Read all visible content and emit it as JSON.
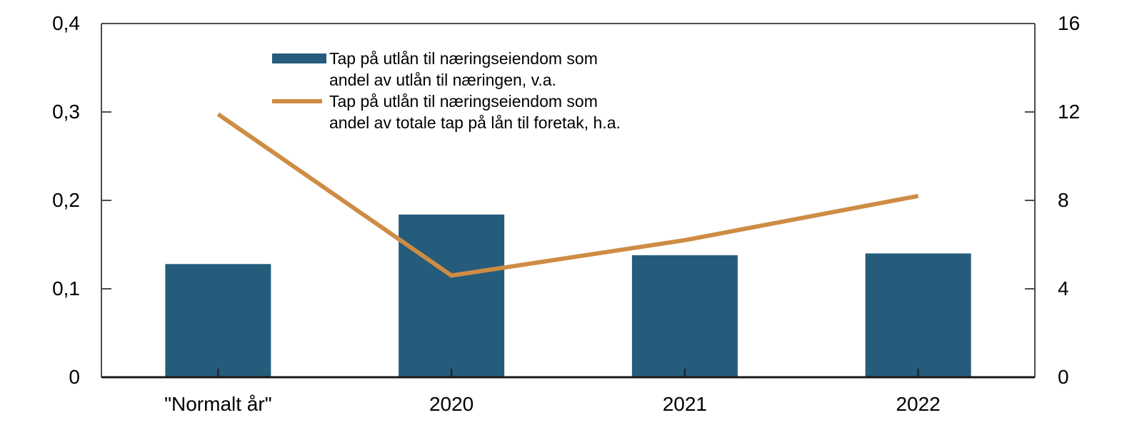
{
  "chart_data": {
    "type": "bar+line",
    "title": "",
    "categories": [
      "\"Normalt år\"",
      "2020",
      "2021",
      "2022"
    ],
    "series": [
      {
        "name": "Tap på utlån til næringseiendom som andel av utlån til næringen, v.a.",
        "kind": "bar",
        "axis": "left",
        "values": [
          0.128,
          0.184,
          0.138,
          0.14
        ]
      },
      {
        "name": "Tap på utlån til næringseiendom som andel av totale tap på lån til foretak, h.a.",
        "kind": "line",
        "axis": "right",
        "values": [
          11.9,
          4.6,
          6.2,
          8.2
        ]
      }
    ],
    "left_axis": {
      "min": 0,
      "max": 0.4,
      "tick_values": [
        0,
        0.1,
        0.2,
        0.3,
        0.4
      ],
      "tick_labels": [
        "0",
        "0,1",
        "0,2",
        "0,3",
        "0,4"
      ]
    },
    "right_axis": {
      "min": 0,
      "max": 16,
      "tick_values": [
        0,
        4,
        8,
        12,
        16
      ],
      "tick_labels": [
        "0",
        "4",
        "8",
        "12",
        "16"
      ]
    },
    "grid": false,
    "legend_position": "top-left-inside"
  },
  "legend": {
    "items": [
      {
        "line1": "Tap på utlån til næringseiendom som",
        "line2": "andel av utlån til næringen, v.a."
      },
      {
        "line1": "Tap på utlån til næringseiendom som",
        "line2": "andel av totale tap på lån til foretak, h.a."
      }
    ]
  },
  "colors": {
    "bar": "#255C7C",
    "line": "#CE8C44",
    "axis": "#4D4D4D",
    "axis_bottom": "#1A1A1A",
    "tick_bottom": "#1F2B38",
    "text": "#000000",
    "background": "#FFFFFF"
  }
}
